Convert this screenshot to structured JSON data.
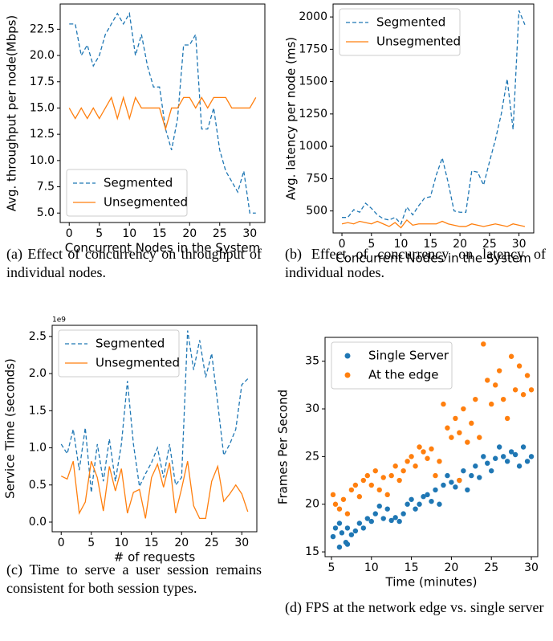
{
  "chart_data": [
    {
      "type": "line",
      "caption": "(a) Effect of concurrency on throughput of individual nodes.",
      "x_label": "Concurrent Nodes in the System",
      "y_label": "Avg. throughput per node(Mbps)",
      "x": [
        0,
        1,
        2,
        3,
        4,
        5,
        6,
        7,
        8,
        9,
        10,
        11,
        12,
        13,
        14,
        15,
        16,
        17,
        18,
        19,
        20,
        21,
        22,
        23,
        24,
        25,
        26,
        27,
        28,
        29,
        30,
        31
      ],
      "series": [
        {
          "name": "Segmented",
          "color": "#1f77b4",
          "linestyle": "dashed",
          "values": [
            23,
            23,
            20,
            21,
            19,
            20,
            22,
            23,
            24,
            23,
            24,
            20,
            22,
            19,
            17,
            17,
            13,
            11,
            14,
            21,
            21,
            22,
            13,
            13,
            15,
            11,
            9,
            8,
            7,
            9,
            5,
            5
          ]
        },
        {
          "name": "Unsegmented",
          "color": "#ff7f0e",
          "linestyle": "solid",
          "values": [
            15,
            14,
            15,
            14,
            15,
            14,
            15,
            16,
            14,
            16,
            14,
            16,
            15,
            15,
            15,
            15,
            13,
            15,
            15,
            16,
            16,
            15,
            16,
            15,
            16,
            16,
            16,
            15,
            15,
            15,
            15,
            16
          ]
        }
      ],
      "xlim": [
        -1.5,
        32.5
      ],
      "xticks": [
        0,
        5,
        10,
        15,
        20,
        25,
        30
      ],
      "ylim": [
        4.1,
        24.9
      ],
      "yticks": [
        {
          "value": 5,
          "label": "5.0"
        },
        7.5,
        {
          "value": 10,
          "label": "10.0"
        },
        12.5,
        {
          "value": 15,
          "label": "15.0"
        },
        17.5,
        {
          "value": 20,
          "label": "20.0"
        },
        22.5
      ],
      "legend": "lower left"
    },
    {
      "type": "line",
      "caption": "(b) Effect of concurrency on latency of individual nodes.",
      "x_label": "Concurrent Nodes in the System",
      "y_label": "Avg. latency per node (ms)",
      "x": [
        0,
        1,
        2,
        3,
        4,
        5,
        6,
        7,
        8,
        9,
        10,
        11,
        12,
        13,
        14,
        15,
        16,
        17,
        18,
        19,
        20,
        21,
        22,
        23,
        24,
        25,
        26,
        27,
        28,
        29,
        30,
        31
      ],
      "series": [
        {
          "name": "Segmented",
          "color": "#1f77b4",
          "linestyle": "dashed",
          "values": [
            450,
            450,
            510,
            490,
            560,
            520,
            470,
            440,
            430,
            450,
            400,
            530,
            470,
            540,
            600,
            610,
            780,
            910,
            720,
            500,
            490,
            490,
            810,
            800,
            700,
            880,
            1050,
            1250,
            1520,
            1130,
            2050,
            1940
          ]
        },
        {
          "name": "Unsegmented",
          "color": "#ff7f0e",
          "linestyle": "solid",
          "values": [
            400,
            410,
            400,
            420,
            410,
            400,
            420,
            400,
            380,
            410,
            370,
            430,
            390,
            400,
            400,
            400,
            400,
            420,
            400,
            390,
            380,
            380,
            400,
            390,
            380,
            390,
            400,
            390,
            380,
            400,
            390,
            380
          ]
        }
      ],
      "xlim": [
        -1.5,
        32.5
      ],
      "xticks": [
        0,
        5,
        10,
        15,
        20,
        25,
        30
      ],
      "ylim": [
        330,
        2100
      ],
      "yticks": [
        500,
        750,
        1000,
        1250,
        1500,
        1750,
        2000
      ],
      "legend": "upper left"
    },
    {
      "type": "line",
      "caption": "(c) Time to serve a user session remains consistent for both session types.",
      "x_label": "# of requests",
      "y_label": "Service Time (seconds)",
      "y_offset_label": "1e9",
      "x": [
        0,
        1,
        2,
        3,
        4,
        5,
        6,
        7,
        8,
        9,
        10,
        11,
        12,
        13,
        14,
        15,
        16,
        17,
        18,
        19,
        20,
        21,
        22,
        23,
        24,
        25,
        26,
        27,
        28,
        29,
        30,
        31
      ],
      "series": [
        {
          "name": "Segmented",
          "color": "#1f77b4",
          "linestyle": "dashed",
          "values": [
            1.05,
            0.92,
            1.25,
            0.7,
            1.27,
            0.4,
            1.05,
            0.55,
            1.12,
            0.55,
            1.05,
            1.9,
            1.05,
            0.48,
            0.65,
            0.8,
            1.0,
            0.6,
            1.05,
            0.5,
            0.6,
            2.58,
            2.05,
            2.45,
            1.95,
            2.27,
            1.6,
            0.9,
            1.05,
            1.25,
            1.85,
            1.93
          ]
        },
        {
          "name": "Unsegmented",
          "color": "#ff7f0e",
          "linestyle": "solid",
          "values": [
            0.62,
            0.58,
            0.82,
            0.12,
            0.27,
            0.82,
            0.6,
            0.15,
            0.75,
            0.42,
            0.72,
            0.12,
            0.4,
            0.44,
            0.05,
            0.6,
            0.78,
            0.47,
            0.8,
            0.12,
            0.45,
            0.82,
            0.22,
            0.05,
            0.05,
            0.55,
            0.75,
            0.28,
            0.38,
            0.5,
            0.38,
            0.14
          ]
        }
      ],
      "xlim": [
        -1.5,
        32.5
      ],
      "xticks": [
        0,
        5,
        10,
        15,
        20,
        25,
        30
      ],
      "ylim": [
        -0.13,
        2.65
      ],
      "yticks": [
        {
          "value": 0,
          "label": "0.0"
        },
        0.5,
        {
          "value": 1,
          "label": "1.0"
        },
        1.5,
        {
          "value": 2,
          "label": "2.0"
        },
        2.5
      ],
      "legend": "upper left"
    },
    {
      "type": "scatter",
      "caption": "(d) FPS at the network edge vs. single server",
      "x_label": "Time (minutes)",
      "y_label": "Frames Per Second",
      "series": [
        {
          "name": "Single Server",
          "color": "#1f77b4",
          "x": [
            5.2,
            5.5,
            6,
            6.3,
            6.8,
            7,
            7.5,
            8,
            8.5,
            9,
            9.5,
            10,
            10.5,
            11,
            11.5,
            12,
            12.5,
            13,
            13.5,
            14,
            14.5,
            15,
            15.5,
            16,
            16.5,
            17,
            17.5,
            18,
            18.5,
            19,
            19.5,
            20,
            20.5,
            21,
            21.5,
            22,
            22.5,
            23,
            23.5,
            24,
            24.5,
            25,
            25.5,
            26,
            26.5,
            27,
            27.5,
            28,
            28.5,
            29,
            29.5,
            30,
            6,
            7
          ],
          "values": [
            16.6,
            17.5,
            18,
            17,
            16,
            17.5,
            16.8,
            17.2,
            18,
            17.5,
            18.5,
            18.2,
            19,
            19.8,
            18.5,
            19.5,
            18.3,
            18.6,
            18.2,
            19,
            20,
            20.5,
            19.5,
            20,
            20.8,
            21,
            20.3,
            21.5,
            20,
            22,
            23,
            22.3,
            21.8,
            22.5,
            23.5,
            21.5,
            23,
            24,
            22.8,
            25,
            24.3,
            23.5,
            24.8,
            26,
            25,
            24.5,
            25.5,
            25.2,
            24,
            26,
            24.5,
            25,
            15.5,
            15.8
          ]
        },
        {
          "name": "At the edge",
          "color": "#ff7f0e",
          "x": [
            5.2,
            5.5,
            6,
            6.5,
            7,
            7.5,
            8,
            8.5,
            9,
            9.5,
            10,
            10.5,
            11,
            11.5,
            12,
            12.5,
            13,
            13.5,
            14,
            14.5,
            15,
            15.5,
            16,
            16.5,
            17,
            17.5,
            18,
            18.5,
            19,
            19.5,
            20,
            20.5,
            21,
            21,
            21.5,
            22,
            22.5,
            23,
            23.5,
            24,
            24.5,
            25,
            25.5,
            26,
            26.5,
            27,
            27.5,
            28,
            28.5,
            29,
            29.5,
            30
          ],
          "values": [
            21,
            20,
            19.5,
            20.5,
            19,
            21.5,
            22,
            20.8,
            22.5,
            23,
            22,
            23.5,
            21.5,
            22.8,
            21,
            23,
            24,
            22.5,
            23.5,
            24.5,
            25,
            24,
            26,
            25.5,
            24.8,
            25.8,
            23,
            24.5,
            30.5,
            28,
            27,
            29,
            27.5,
            22.5,
            30,
            26.5,
            28.5,
            31,
            27,
            36.8,
            33,
            30.5,
            32.5,
            34,
            31,
            29,
            35.5,
            32,
            34.5,
            31.5,
            33.5,
            32
          ]
        }
      ],
      "xlim": [
        4.2,
        30.8
      ],
      "xticks": [
        5,
        10,
        15,
        20,
        25,
        30
      ],
      "ylim": [
        14.5,
        37.5
      ],
      "yticks": [
        15,
        20,
        25,
        30,
        35
      ],
      "legend": "upper left"
    }
  ]
}
